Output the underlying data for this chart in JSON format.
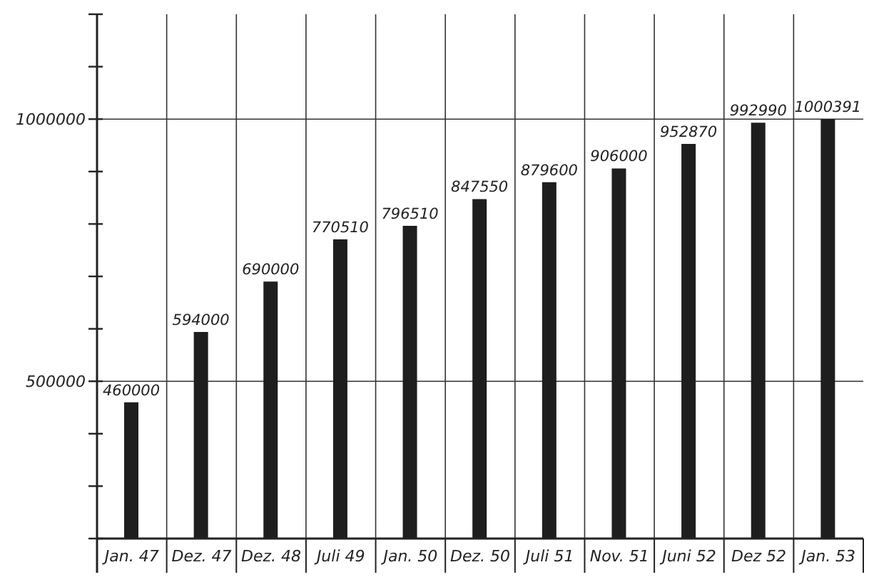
{
  "chart_data": {
    "type": "bar",
    "categories": [
      "Jan. 47",
      "Dez. 47",
      "Dez. 48",
      "Juli 49",
      "Jan. 50",
      "Dez. 50",
      "Juli 51",
      "Nov. 51",
      "Juni 52",
      "Dez 52",
      "Jan. 53"
    ],
    "values": [
      460000,
      594000,
      690000,
      770510,
      796510,
      847550,
      879600,
      906000,
      952870,
      992990,
      1000391
    ],
    "value_labels": [
      "460000",
      "594000",
      "690000",
      "770510",
      "796510",
      "847550",
      "879600",
      "906000",
      "952870",
      "992990",
      "1000391"
    ],
    "color": "#1e1e1e",
    "ylim": [
      200000,
      1200000
    ],
    "yticks": [
      {
        "value": 200000,
        "label": null
      },
      {
        "value": 300000,
        "label": null
      },
      {
        "value": 400000,
        "label": null
      },
      500000,
      {
        "value": 600000,
        "label": null
      },
      {
        "value": 700000,
        "label": null
      },
      {
        "value": 800000,
        "label": null
      },
      {
        "value": 900000,
        "label": null
      },
      1000000,
      {
        "value": 1100000,
        "label": null
      },
      {
        "value": 1200000,
        "label": null
      }
    ],
    "grid": true
  }
}
